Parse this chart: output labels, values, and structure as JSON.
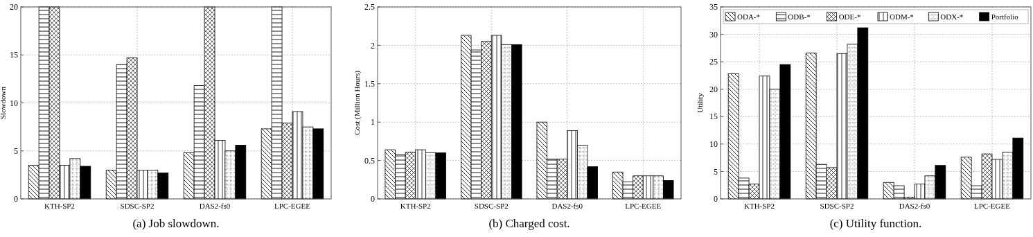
{
  "chart_data": [
    {
      "type": "bar",
      "title": "(a) Job slowdown.",
      "ylabel": "Slowdown",
      "categories": [
        "KTH-SP2",
        "SDSC-SP2",
        "DAS2-fs0",
        "LPC-EGEE"
      ],
      "ylim": [
        0,
        20
      ],
      "yticks": [
        0,
        5,
        10,
        15,
        20
      ],
      "grid": true,
      "legend": false,
      "series": [
        {
          "color": "#000000",
          "values": [
            3.5,
            3.0,
            4.8,
            7.3
          ]
        },
        {
          "color": "#000000",
          "values": [
            20,
            14.0,
            11.8,
            20
          ]
        },
        {
          "color": "#000000",
          "values": [
            20,
            14.7,
            20,
            7.9
          ]
        },
        {
          "color": "#000000",
          "values": [
            3.5,
            3.0,
            6.1,
            9.1
          ]
        },
        {
          "color": "#000000",
          "values": [
            4.2,
            3.0,
            5.0,
            7.5
          ]
        },
        {
          "color": "#000000",
          "values": [
            3.4,
            2.7,
            5.6,
            7.3
          ]
        }
      ]
    },
    {
      "type": "bar",
      "title": "(b) Charged cost.",
      "ylabel": "Cost (Million Hours)",
      "categories": [
        "KTH-SP2",
        "SDSC-SP2",
        "DAS2-fs0",
        "LPC-EGEE"
      ],
      "ylim": [
        0,
        2.5
      ],
      "yticks": [
        0,
        0.5,
        1,
        1.5,
        2,
        2.5
      ],
      "grid": true,
      "legend": false,
      "series": [
        {
          "color": "#000000",
          "values": [
            0.64,
            2.13,
            1.0,
            0.35
          ]
        },
        {
          "color": "#000000",
          "values": [
            0.58,
            1.94,
            0.52,
            0.22
          ]
        },
        {
          "color": "#000000",
          "values": [
            0.61,
            2.05,
            0.52,
            0.3
          ]
        },
        {
          "color": "#000000",
          "values": [
            0.64,
            2.13,
            0.89,
            0.3
          ]
        },
        {
          "color": "#000000",
          "values": [
            0.6,
            2.01,
            0.7,
            0.3
          ]
        },
        {
          "color": "#000000",
          "values": [
            0.6,
            2.01,
            0.42,
            0.24
          ]
        }
      ]
    },
    {
      "type": "bar",
      "title": "(c) Utility function.",
      "ylabel": "Utility",
      "categories": [
        "KTH-SP2",
        "SDSC-SP2",
        "DAS2-fs0",
        "LPC-EGEE"
      ],
      "ylim": [
        0,
        35
      ],
      "yticks": [
        0,
        5,
        10,
        15,
        20,
        25,
        30,
        35
      ],
      "grid": true,
      "legend": "top",
      "series": [
        {
          "name": "ODA-*",
          "color": "#000000",
          "values": [
            22.8,
            26.6,
            3.0,
            7.6
          ]
        },
        {
          "name": "ODB-*",
          "color": "#000000",
          "values": [
            3.8,
            6.3,
            2.4,
            2.4
          ]
        },
        {
          "name": "ODE-*",
          "color": "#000000",
          "values": [
            2.7,
            5.7,
            0.3,
            8.2
          ]
        },
        {
          "name": "ODM-*",
          "color": "#000000",
          "values": [
            22.4,
            26.5,
            2.7,
            7.2
          ]
        },
        {
          "name": "ODX-*",
          "color": "#000000",
          "values": [
            20.0,
            28.2,
            4.2,
            8.5
          ]
        },
        {
          "name": "Portfolio",
          "color": "#000000",
          "values": [
            24.5,
            31.2,
            6.1,
            11.1
          ]
        }
      ]
    }
  ]
}
